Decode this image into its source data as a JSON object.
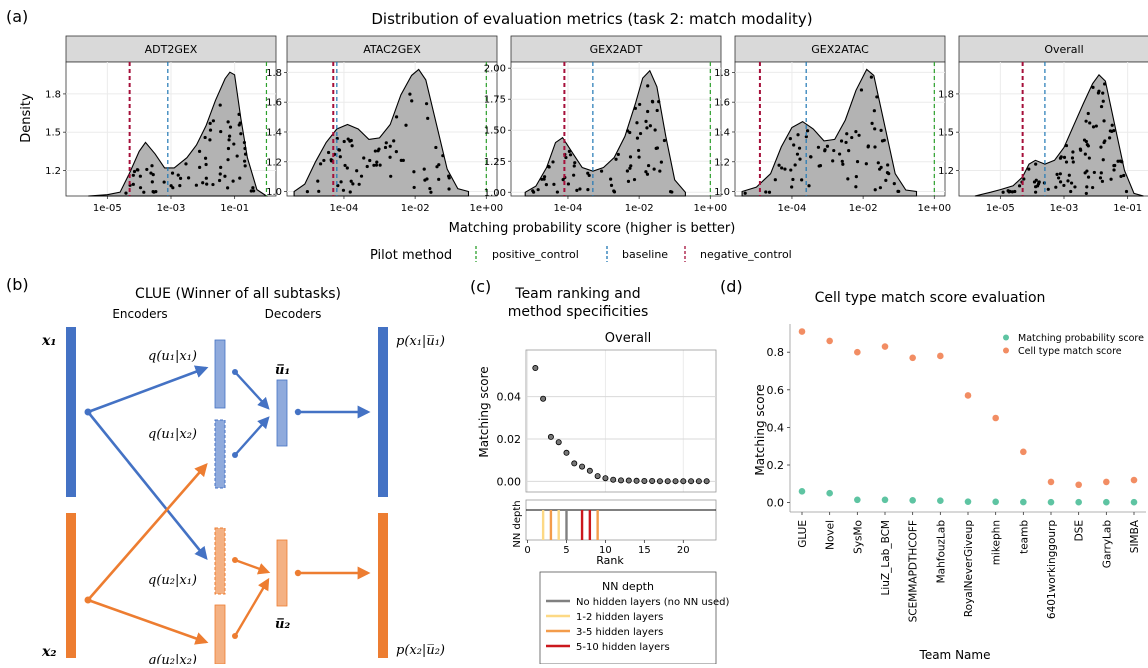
{
  "panels": {
    "a": "(a)",
    "b": "(b)",
    "c": "(c)",
    "d": "(d)"
  },
  "colors": {
    "positive_control": "#2ca02c",
    "baseline": "#1f77b4",
    "negative_control": "#a50f3a",
    "blue": "#4472c4",
    "orange": "#ed7d31",
    "teal": "#5ec4a2",
    "salmon": "#f28d63",
    "grey": "#b3b3b3"
  },
  "chart_data": [
    {
      "type": "area",
      "title": "Distribution of evaluation metrics (task 2: match modality)",
      "xlabel": "Matching probability score (higher is better)",
      "ylabel": "Density",
      "legend_title": "Pilot method",
      "legend": [
        "positive_control",
        "baseline",
        "negative_control"
      ],
      "facets": [
        {
          "name": "ADT2GEX",
          "xlim": [
            -6.3,
            0.3
          ],
          "ylim": [
            1.0,
            2.05
          ],
          "yticks": [
            "1.2",
            "1.5",
            "1.8"
          ],
          "yticks_v": [
            1.2,
            1.5,
            1.8
          ],
          "xticks": [
            "1e-05",
            "1e-03",
            "1e-01"
          ],
          "xticks_v": [
            -5,
            -3,
            -1
          ],
          "positive_control": 0,
          "baseline": -3.1,
          "negative_control": -4.3,
          "density": [
            [
              -5.6,
              1.0
            ],
            [
              -5.0,
              1.01
            ],
            [
              -4.6,
              1.03
            ],
            [
              -4.3,
              1.18
            ],
            [
              -4.0,
              1.35
            ],
            [
              -3.8,
              1.42
            ],
            [
              -3.5,
              1.33
            ],
            [
              -3.2,
              1.22
            ],
            [
              -2.9,
              1.22
            ],
            [
              -2.5,
              1.3
            ],
            [
              -2.2,
              1.4
            ],
            [
              -1.9,
              1.55
            ],
            [
              -1.6,
              1.75
            ],
            [
              -1.3,
              1.92
            ],
            [
              -1.15,
              1.97
            ],
            [
              -1.0,
              1.95
            ],
            [
              -0.8,
              1.6
            ],
            [
              -0.6,
              1.3
            ],
            [
              -0.3,
              1.05
            ],
            [
              0.0,
              1.0
            ]
          ]
        },
        {
          "name": "ATAC2GEX",
          "xlim": [
            -5.6,
            0.3
          ],
          "ylim": [
            0.97,
            1.87
          ],
          "yticks": [
            "1.0",
            "1.2",
            "1.4",
            "1.6",
            "1.8"
          ],
          "yticks_v": [
            1.0,
            1.2,
            1.4,
            1.6,
            1.8
          ],
          "xticks": [
            "1e-04",
            "1e-02",
            "1e+00"
          ],
          "xticks_v": [
            -4,
            -2,
            0
          ],
          "positive_control": 0,
          "baseline": -4.2,
          "negative_control": -4.3,
          "density": [
            [
              -5.4,
              1.0
            ],
            [
              -5.1,
              1.05
            ],
            [
              -4.8,
              1.2
            ],
            [
              -4.5,
              1.33
            ],
            [
              -4.2,
              1.42
            ],
            [
              -3.9,
              1.45
            ],
            [
              -3.6,
              1.42
            ],
            [
              -3.3,
              1.35
            ],
            [
              -3.0,
              1.36
            ],
            [
              -2.7,
              1.45
            ],
            [
              -2.4,
              1.65
            ],
            [
              -2.1,
              1.78
            ],
            [
              -1.9,
              1.82
            ],
            [
              -1.7,
              1.75
            ],
            [
              -1.4,
              1.45
            ],
            [
              -1.1,
              1.15
            ],
            [
              -0.8,
              1.02
            ],
            [
              -0.5,
              1.0
            ]
          ]
        },
        {
          "name": "GEX2ADT",
          "xlim": [
            -5.6,
            0.3
          ],
          "ylim": [
            0.97,
            2.05
          ],
          "yticks": [
            "1.00",
            "1.25",
            "1.50",
            "1.75",
            "2.00"
          ],
          "yticks_v": [
            1.0,
            1.25,
            1.5,
            1.75,
            2.0
          ],
          "xticks": [
            "1e-04",
            "1e-02",
            "1e+00"
          ],
          "xticks_v": [
            -4,
            -2,
            0
          ],
          "positive_control": 0,
          "baseline": -3.3,
          "negative_control": -4.1,
          "density": [
            [
              -5.2,
              1.0
            ],
            [
              -4.9,
              1.05
            ],
            [
              -4.6,
              1.2
            ],
            [
              -4.35,
              1.4
            ],
            [
              -4.15,
              1.44
            ],
            [
              -3.9,
              1.33
            ],
            [
              -3.6,
              1.2
            ],
            [
              -3.3,
              1.17
            ],
            [
              -3.0,
              1.2
            ],
            [
              -2.7,
              1.28
            ],
            [
              -2.4,
              1.45
            ],
            [
              -2.1,
              1.72
            ],
            [
              -1.9,
              1.92
            ],
            [
              -1.7,
              1.98
            ],
            [
              -1.5,
              1.85
            ],
            [
              -1.25,
              1.45
            ],
            [
              -1.0,
              1.1
            ],
            [
              -0.7,
              1.0
            ]
          ]
        },
        {
          "name": "GEX2ATAC",
          "xlim": [
            -5.6,
            0.3
          ],
          "ylim": [
            0.97,
            1.87
          ],
          "yticks": [
            "1.0",
            "1.2",
            "1.4",
            "1.6",
            "1.8"
          ],
          "yticks_v": [
            1.0,
            1.2,
            1.4,
            1.6,
            1.8
          ],
          "xticks": [
            "1e-04",
            "1e-02",
            "1e+00"
          ],
          "xticks_v": [
            -4,
            -2,
            0
          ],
          "positive_control": 0,
          "baseline": -3.6,
          "negative_control": -4.9,
          "density": [
            [
              -5.4,
              1.0
            ],
            [
              -5.0,
              1.03
            ],
            [
              -4.6,
              1.12
            ],
            [
              -4.3,
              1.3
            ],
            [
              -4.0,
              1.43
            ],
            [
              -3.7,
              1.47
            ],
            [
              -3.4,
              1.42
            ],
            [
              -3.1,
              1.34
            ],
            [
              -2.8,
              1.35
            ],
            [
              -2.5,
              1.48
            ],
            [
              -2.2,
              1.68
            ],
            [
              -1.9,
              1.82
            ],
            [
              -1.7,
              1.78
            ],
            [
              -1.4,
              1.45
            ],
            [
              -1.1,
              1.12
            ],
            [
              -0.8,
              1.01
            ],
            [
              -0.5,
              1.0
            ]
          ]
        },
        {
          "name": "Overall",
          "xlim": [
            -6.3,
            0.3
          ],
          "ylim": [
            1.0,
            2.05
          ],
          "yticks": [
            "1.2",
            "1.5",
            "1.8"
          ],
          "yticks_v": [
            1.2,
            1.5,
            1.8
          ],
          "xticks": [
            "1e-05",
            "1e-03",
            "1e-01"
          ],
          "xticks_v": [
            -5,
            -3,
            -1
          ],
          "positive_control": 0,
          "baseline": -3.6,
          "negative_control": -4.3,
          "density": [
            [
              -5.8,
              1.0
            ],
            [
              -5.3,
              1.03
            ],
            [
              -5.0,
              1.05
            ],
            [
              -4.6,
              1.08
            ],
            [
              -4.3,
              1.15
            ],
            [
              -4.1,
              1.25
            ],
            [
              -3.9,
              1.28
            ],
            [
              -3.6,
              1.25
            ],
            [
              -3.3,
              1.28
            ],
            [
              -3.0,
              1.38
            ],
            [
              -2.7,
              1.55
            ],
            [
              -2.4,
              1.72
            ],
            [
              -2.1,
              1.88
            ],
            [
              -1.9,
              1.95
            ],
            [
              -1.7,
              1.9
            ],
            [
              -1.4,
              1.55
            ],
            [
              -1.1,
              1.2
            ],
            [
              -0.8,
              1.02
            ],
            [
              -0.5,
              1.0
            ]
          ]
        }
      ]
    },
    {
      "type": "scatter",
      "title": "Team ranking and method specificities",
      "title_lines": [
        "Team ranking and",
        "method specificities"
      ],
      "facet": "Overall",
      "xlabel": "Rank",
      "ylabel": "Matching score",
      "ylim": [
        -0.005,
        0.062
      ],
      "yticks": [
        "0.00",
        "0.02",
        "0.04"
      ],
      "xticks": [
        "0",
        "5",
        "10",
        "15",
        "20"
      ],
      "x": [
        1,
        2,
        3,
        4,
        5,
        6,
        7,
        8,
        9,
        10,
        11,
        12,
        13,
        14,
        15,
        16,
        17,
        18,
        19,
        20,
        21,
        22,
        23
      ],
      "y": [
        0.0535,
        0.039,
        0.021,
        0.0185,
        0.0135,
        0.0085,
        0.007,
        0.005,
        0.0025,
        0.0015,
        0.0008,
        0.0005,
        0.0004,
        0.0003,
        0.0002,
        0.0002,
        0.0001,
        0.0001,
        0.0001,
        0.0001,
        0.0001,
        0.0001,
        0.0001
      ],
      "nn_ylabel": "NN depth",
      "nn_depth_bars": [
        {
          "rank": 2,
          "cat": "1-2 hidden layers"
        },
        {
          "rank": 3,
          "cat": "3-5 hidden layers"
        },
        {
          "rank": 4,
          "cat": "1-2 hidden layers"
        },
        {
          "rank": 5,
          "cat": "No hidden layers (no NN used)"
        },
        {
          "rank": 7,
          "cat": "5-10 hidden layers"
        },
        {
          "rank": 8,
          "cat": "5-10 hidden layers"
        },
        {
          "rank": 9,
          "cat": "3-5 hidden layers"
        }
      ],
      "legend_title": "NN depth",
      "legend": [
        {
          "label": "No hidden layers (no NN used)",
          "color": "#808080"
        },
        {
          "label": "1-2 hidden layers",
          "color": "#fdd985"
        },
        {
          "label": "3-5 hidden layers",
          "color": "#f39c4b"
        },
        {
          "label": "5-10 hidden layers",
          "color": "#cb181d"
        }
      ]
    },
    {
      "type": "scatter",
      "title": "Cell type match score evaluation",
      "xlabel": "Team Name",
      "ylabel": "Matching score",
      "ylim": [
        -0.05,
        0.95
      ],
      "yticks": [
        "0.0",
        "0.2",
        "0.4",
        "0.6",
        "0.8"
      ],
      "categories": [
        "GLUE",
        "Novel",
        "SysMo",
        "LiuZ_Lab_BCM",
        "SCEMMAPDTHCOFF",
        "MahfouzLab",
        "RoyalNeverGiveup",
        "mikephn",
        "teamb",
        "6401workinggourp",
        "DSE",
        "GarryLab",
        "SIMBA"
      ],
      "series": [
        {
          "name": "Matching probability score",
          "values": [
            0.06,
            0.05,
            0.015,
            0.015,
            0.012,
            0.01,
            0.005,
            0.004,
            0.003,
            0.002,
            0.002,
            0.002,
            0.002
          ]
        },
        {
          "name": "Cell type match score",
          "values": [
            0.91,
            0.86,
            0.8,
            0.83,
            0.77,
            0.78,
            0.57,
            0.45,
            0.27,
            0.11,
            0.095,
            0.11,
            0.12
          ]
        }
      ]
    }
  ],
  "diagram": {
    "title": "CLUE (Winner of all subtasks)",
    "encoders": "Encoders",
    "decoders": "Decoders",
    "x1": "x₁",
    "x2": "x₂",
    "q_u1_x1": "q(u₁|x₁)",
    "q_u1_x2": "q(u₁|x₂)",
    "q_u2_x1": "q(u₂|x₁)",
    "q_u2_x2": "q(u₂|x₂)",
    "u1bar": "u̅₁",
    "u2bar": "u̅₂",
    "p_x1": "p(x₁|u̅₁)",
    "p_x2": "p(x₂|u̅₂)"
  }
}
